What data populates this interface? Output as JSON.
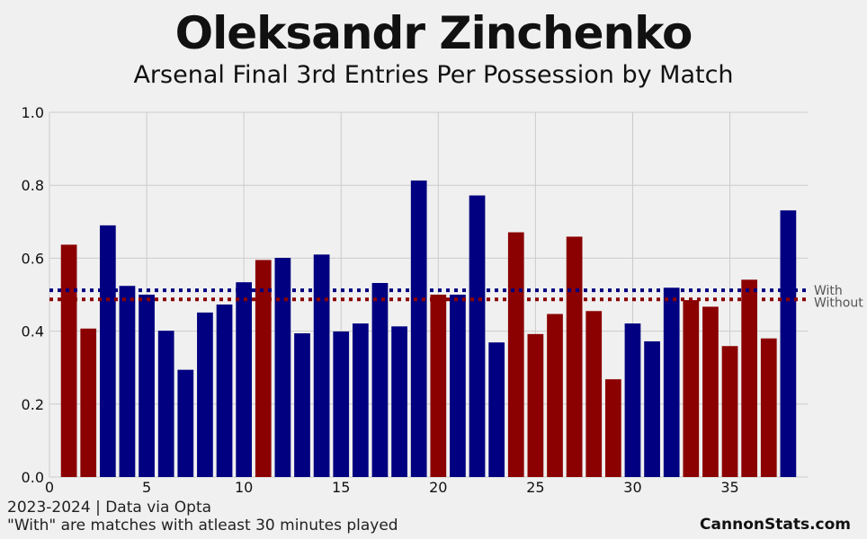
{
  "header": {
    "title": "Oleksandr Zinchenko",
    "subtitle": "Arsenal Final 3rd Entries Per Possession by Match"
  },
  "footer": {
    "note1": "2023-2024 | Data via Opta",
    "note2": "\"With\" are matches with atleast 30 minutes played",
    "brand": "CannonStats.com"
  },
  "colors": {
    "with": "#000080",
    "without": "#8b0000",
    "background": "#f0f0f0",
    "grid": "#cbcbcb"
  },
  "chart_data": {
    "type": "bar",
    "x": [
      1,
      2,
      3,
      4,
      5,
      6,
      7,
      8,
      9,
      10,
      11,
      12,
      13,
      14,
      15,
      16,
      17,
      18,
      19,
      20,
      21,
      22,
      23,
      24,
      25,
      26,
      27,
      28,
      29,
      30,
      31,
      32,
      33,
      34,
      35,
      36,
      37,
      38
    ],
    "values": [
      0.637,
      0.407,
      0.69,
      0.524,
      0.5,
      0.401,
      0.294,
      0.451,
      0.473,
      0.534,
      0.595,
      0.601,
      0.394,
      0.61,
      0.399,
      0.421,
      0.532,
      0.413,
      0.813,
      0.5,
      0.5,
      0.772,
      0.369,
      0.671,
      0.392,
      0.447,
      0.659,
      0.455,
      0.268,
      0.421,
      0.372,
      0.519,
      0.485,
      0.467,
      0.359,
      0.541,
      0.38,
      0.731
    ],
    "groups": [
      "Without",
      "Without",
      "With",
      "With",
      "With",
      "With",
      "With",
      "With",
      "With",
      "With",
      "Without",
      "With",
      "With",
      "With",
      "With",
      "With",
      "With",
      "With",
      "With",
      "Without",
      "With",
      "With",
      "With",
      "Without",
      "Without",
      "Without",
      "Without",
      "Without",
      "Without",
      "With",
      "With",
      "With",
      "Without",
      "Without",
      "Without",
      "Without",
      "Without",
      "With"
    ],
    "reference_lines": [
      {
        "name": "With",
        "value": 0.512
      },
      {
        "name": "Without",
        "value": 0.487
      }
    ],
    "xlim": [
      0,
      39
    ],
    "ylim": [
      0,
      1.0
    ],
    "xticks": [
      "0",
      "5",
      "10",
      "15",
      "20",
      "25",
      "30",
      "35"
    ],
    "xtick_values": [
      0,
      5,
      10,
      15,
      20,
      25,
      30,
      35
    ],
    "yticks": [
      "0.0",
      "0.2",
      "0.4",
      "0.6",
      "0.8",
      "1.0"
    ],
    "ytick_values": [
      0,
      0.2,
      0.4,
      0.6,
      0.8,
      1.0
    ],
    "grid": true
  }
}
